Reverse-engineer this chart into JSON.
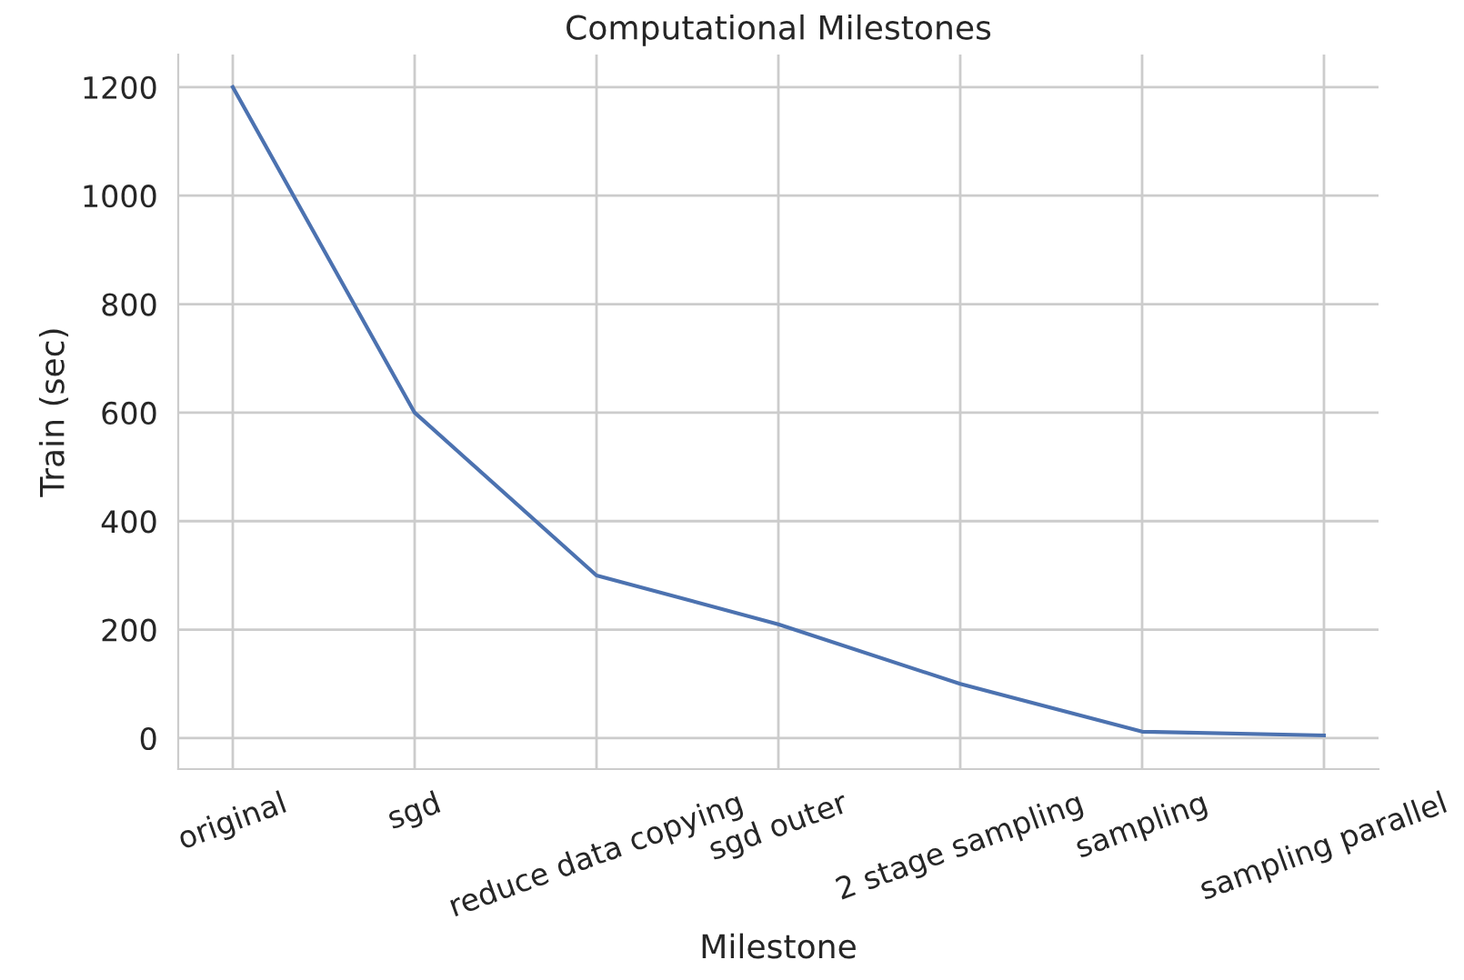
{
  "chart_data": {
    "type": "line",
    "title": "Computational Milestones",
    "xlabel": "Milestone",
    "ylabel": "Train (sec)",
    "categories": [
      "original",
      "sgd",
      "reduce data copying",
      "sgd outer",
      "2 stage sampling",
      "sampling",
      "sampling parallel"
    ],
    "series": [
      {
        "color": "#4c72b0",
        "values": [
          1200,
          600,
          300,
          210,
          100,
          12,
          5
        ]
      }
    ],
    "ylim": [
      -57,
      1260
    ],
    "yticks": [
      0,
      200,
      400,
      600,
      800,
      1000,
      1200
    ],
    "grid": true
  }
}
